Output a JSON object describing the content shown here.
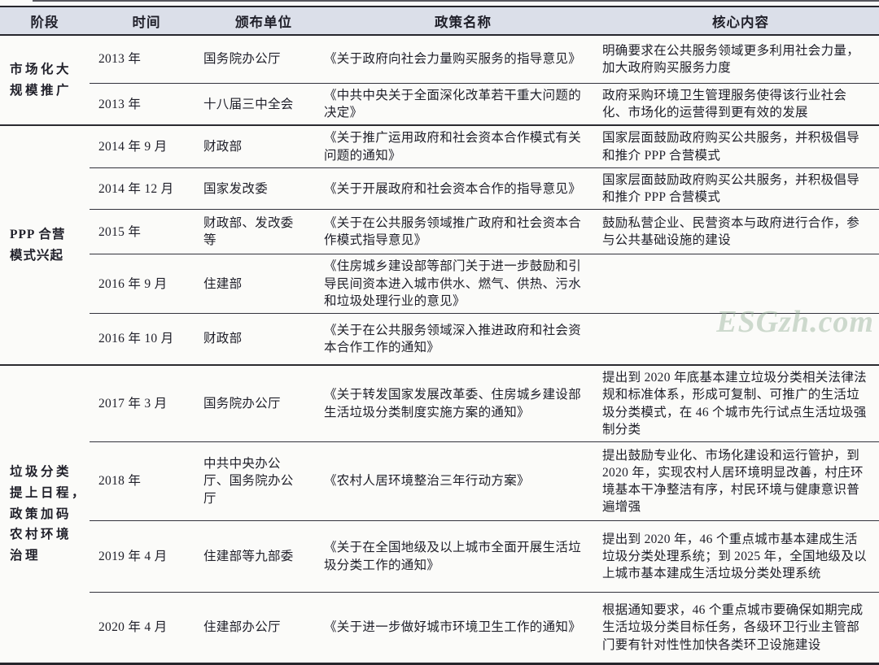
{
  "table": {
    "columns": [
      "阶段",
      "时间",
      "颁布单位",
      "政策名称",
      "核心内容"
    ],
    "groups": [
      {
        "stage": "市场化大\n规模推广",
        "rows": [
          {
            "time": "2013 年",
            "unit": "国务院办公厅",
            "policy": "《关于政府向社会力量购买服务的指导意见》",
            "core": "明确要求在公共服务领域更多利用社会力量，加大政府购买服务力度"
          },
          {
            "time": "2013 年",
            "unit": "十八届三中全会",
            "policy": "《中共中央关于全面深化改革若干重大问题的决定》",
            "core": "政府采购环境卫生管理服务使得该行业社会化、市场化的运营得到更有效的发展"
          }
        ]
      },
      {
        "stage": "PPP 合营\n模式兴起",
        "rows": [
          {
            "time": "2014 年 9 月",
            "unit": "财政部",
            "policy": "《关于推广运用政府和社会资本合作模式有关问题的通知》",
            "core": "国家层面鼓励政府购买公共服务，并积极倡导和推介 PPP 合营模式"
          },
          {
            "time": "2014 年 12 月",
            "unit": "国家发改委",
            "policy": "《关于开展政府和社会资本合作的指导意见》",
            "core": "国家层面鼓励政府购买公共服务，并积极倡导和推介 PPP 合营模式"
          },
          {
            "time": "2015 年",
            "unit": "财政部、发改委等",
            "policy": "《关于在公共服务领域推广政府和社会资本合作模式指导意见》",
            "core": "鼓励私营企业、民营资本与政府进行合作，参与公共基础设施的建设"
          },
          {
            "time": "2016 年 9 月",
            "unit": "住建部",
            "policy": "《住房城乡建设部等部门关于进一步鼓励和引导民间资本进入城市供水、燃气、供热、污水和垃圾处理行业的意见》",
            "core": ""
          },
          {
            "time": "2016 年 10 月",
            "unit": "财政部",
            "policy": "《关于在公共服务领域深入推进政府和社会资本合作工作的通知》",
            "core": ""
          }
        ]
      },
      {
        "stage": "垃圾分类\n提上日程，\n政策加码\n农村环境\n治理",
        "rows": [
          {
            "time": "2017 年 3 月",
            "unit": "国务院办公厅",
            "policy": "《关于转发国家发展改革委、住房城乡建设部生活垃圾分类制度实施方案的通知》",
            "core": "提出到 2020 年底基本建立垃圾分类相关法律法规和标准体系，形成可复制、可推广的生活垃圾分类模式，在 46 个城市先行试点生活垃圾强制分类"
          },
          {
            "time": "2018 年",
            "unit": "中共中央办公厅、国务院办公厅",
            "policy": "《农村人居环境整治三年行动方案》",
            "core": "提出鼓励专业化、市场化建设和运行管护，到 2020 年，实现农村人居环境明显改善，村庄环境基本干净整洁有序，村民环境与健康意识普遍增强"
          },
          {
            "time": "2019 年 4 月",
            "unit": "住建部等九部委",
            "policy": "《关于在全国地级及以上城市全面开展生活垃圾分类工作的通知》",
            "core": "提出到 2020 年，46 个重点城市基本建成生活垃圾分类处理系统；到 2025 年，全国地级及以上城市基本建成生活垃圾分类处理系统"
          },
          {
            "time": "2020 年 4 月",
            "unit": "住建部办公厅",
            "policy": "《关于进一步做好城市环境卫生工作的通知》",
            "core": "根据通知要求，46 个重点城市要确保如期完成生活垃圾分类目标任务，各级环卫行业主管部门要有针对性性加快各类环卫设施建设"
          }
        ]
      }
    ]
  },
  "watermark": "ESGzh.com",
  "colors": {
    "header_bg": "#dbdfe9",
    "rule": "#2a2a30",
    "text": "#20202a",
    "watermark": "#94b096"
  }
}
